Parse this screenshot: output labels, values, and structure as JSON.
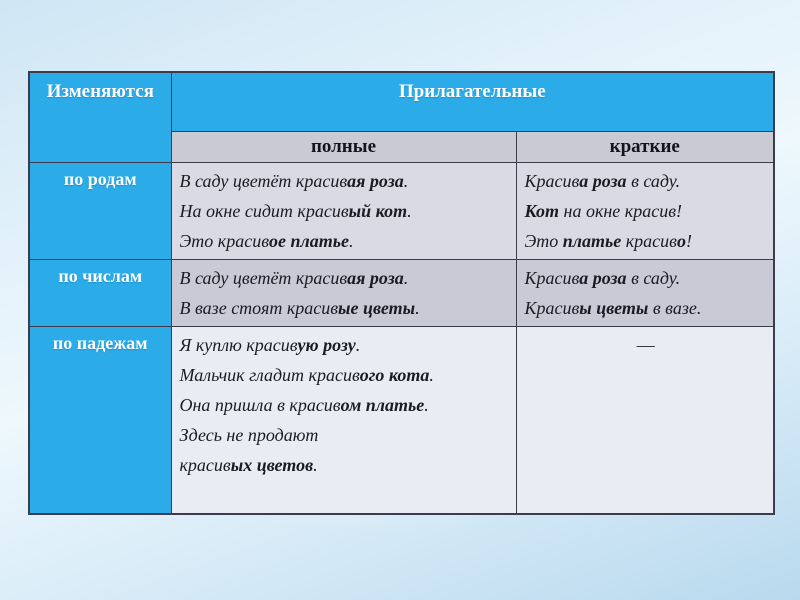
{
  "slide": {
    "colors": {
      "header_blue": "#2BACE8",
      "subheader_bg": "#C9CAD4",
      "border": "#3C3C4C",
      "body_text": "#1B1B24",
      "row_bgs": [
        "#D9DAE3",
        "#C9CAD6",
        "#EAECF3"
      ]
    },
    "table": {
      "corner_label": "Изменяются",
      "group_label": "Прилагательные",
      "columns": [
        "полные",
        "краткие"
      ],
      "rows": [
        {
          "label": "по родам",
          "full": {
            "align": "left",
            "lines": [
              [
                {
                  "t": "В саду цветёт красив"
                },
                {
                  "t": "ая роза",
                  "b": 1
                },
                {
                  "t": "."
                }
              ],
              [
                {
                  "t": "На окне сидит красив"
                },
                {
                  "t": "ый кот",
                  "b": 1
                },
                {
                  "t": "."
                }
              ],
              [
                {
                  "t": "Это красив"
                },
                {
                  "t": "ое платье",
                  "b": 1
                },
                {
                  "t": "."
                }
              ]
            ]
          },
          "short": {
            "align": "left",
            "lines": [
              [
                {
                  "t": "Красив"
                },
                {
                  "t": "а роза",
                  "b": 1
                },
                {
                  "t": " в саду."
                }
              ],
              [
                {
                  "t": "Кот",
                  "b": 1
                },
                {
                  "t": " на окне красив!"
                }
              ],
              [
                {
                  "t": "Это "
                },
                {
                  "t": "платье",
                  "b": 1
                },
                {
                  "t": " красив"
                },
                {
                  "t": "о",
                  "b": 1
                },
                {
                  "t": "!"
                }
              ]
            ]
          }
        },
        {
          "label": "по числам",
          "full": {
            "align": "left",
            "lines": [
              [
                {
                  "t": "В саду цветёт красив"
                },
                {
                  "t": "ая роза",
                  "b": 1
                },
                {
                  "t": "."
                }
              ],
              [
                {
                  "t": "В вазе стоят красив"
                },
                {
                  "t": "ые цветы",
                  "b": 1
                },
                {
                  "t": "."
                }
              ]
            ]
          },
          "short": {
            "align": "left",
            "lines": [
              [
                {
                  "t": "Красив"
                },
                {
                  "t": "а роза",
                  "b": 1
                },
                {
                  "t": " в саду."
                }
              ],
              [
                {
                  "t": "Красив"
                },
                {
                  "t": "ы цветы",
                  "b": 1
                },
                {
                  "t": " в вазе."
                }
              ]
            ]
          }
        },
        {
          "label": "по падежам",
          "full": {
            "align": "left",
            "lines": [
              [
                {
                  "t": "Я куплю красив"
                },
                {
                  "t": "ую розу",
                  "b": 1
                },
                {
                  "t": "."
                }
              ],
              [
                {
                  "t": "Мальчик гладит красив"
                },
                {
                  "t": "ого кота",
                  "b": 1
                },
                {
                  "t": "."
                }
              ],
              [
                {
                  "t": "Она пришла в красив"
                },
                {
                  "t": "ом платье",
                  "b": 1
                },
                {
                  "t": "."
                }
              ],
              [
                {
                  "t": "Здесь не продают"
                }
              ],
              [
                {
                  "t": "красив"
                },
                {
                  "t": "ых цветов",
                  "b": 1
                },
                {
                  "t": "."
                }
              ]
            ]
          },
          "short": {
            "align": "center",
            "lines": [
              [
                {
                  "t": "—"
                }
              ]
            ]
          }
        }
      ]
    }
  }
}
